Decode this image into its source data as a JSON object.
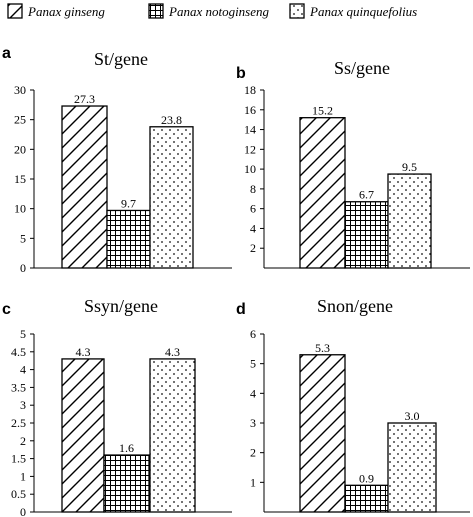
{
  "legend": [
    {
      "name": "Panax ginseng",
      "pattern": "hatch-diagonal"
    },
    {
      "name": "Panax notoginseng",
      "pattern": "grid"
    },
    {
      "name": "Panax quinquefolius",
      "pattern": "dots"
    }
  ],
  "chart_data": [
    {
      "type": "bar",
      "letter": "a",
      "title": "St/gene",
      "categories": [
        "Panax ginseng",
        "Panax notoginseng",
        "Panax quinquefolius"
      ],
      "values": [
        27.3,
        9.7,
        23.8
      ],
      "value_labels": [
        "27.3",
        "9.7",
        "23.8"
      ],
      "ylim": [
        0,
        30
      ],
      "yticks": [
        "0",
        "5",
        "10",
        "15",
        "20",
        "25",
        "30"
      ],
      "xlabel": "",
      "ylabel": ""
    },
    {
      "type": "bar",
      "letter": "b",
      "title": "Ss/gene",
      "categories": [
        "Panax ginseng",
        "Panax notoginseng",
        "Panax quinquefolius"
      ],
      "values": [
        15.2,
        6.7,
        9.5
      ],
      "value_labels": [
        "15.2",
        "6.7",
        "9.5"
      ],
      "ylim": [
        0,
        18
      ],
      "yticks": [
        "2",
        "4",
        "6",
        "8",
        "10",
        "12",
        "14",
        "16",
        "18"
      ],
      "xlabel": "",
      "ylabel": ""
    },
    {
      "type": "bar",
      "letter": "c",
      "title": "Ssyn/gene",
      "categories": [
        "Panax ginseng",
        "Panax notoginseng",
        "Panax quinquefolius"
      ],
      "values": [
        4.3,
        1.6,
        4.3
      ],
      "value_labels": [
        "4.3",
        "1.6",
        "4.3"
      ],
      "ylim": [
        0,
        5
      ],
      "yticks": [
        "0",
        "0.5",
        "1",
        "1.5",
        "2",
        "2.5",
        "3",
        "3.5",
        "4",
        "4.5",
        "5"
      ],
      "xlabel": "",
      "ylabel": ""
    },
    {
      "type": "bar",
      "letter": "d",
      "title": "Snon/gene",
      "categories": [
        "Panax ginseng",
        "Panax notoginseng",
        "Panax quinquefolius"
      ],
      "values": [
        5.3,
        0.9,
        3.0
      ],
      "value_labels": [
        "5.3",
        "0.9",
        "3.0"
      ],
      "ylim": [
        0,
        6
      ],
      "yticks": [
        "1",
        "2",
        "3",
        "4",
        "5",
        "6"
      ],
      "xlabel": "",
      "ylabel": ""
    }
  ]
}
